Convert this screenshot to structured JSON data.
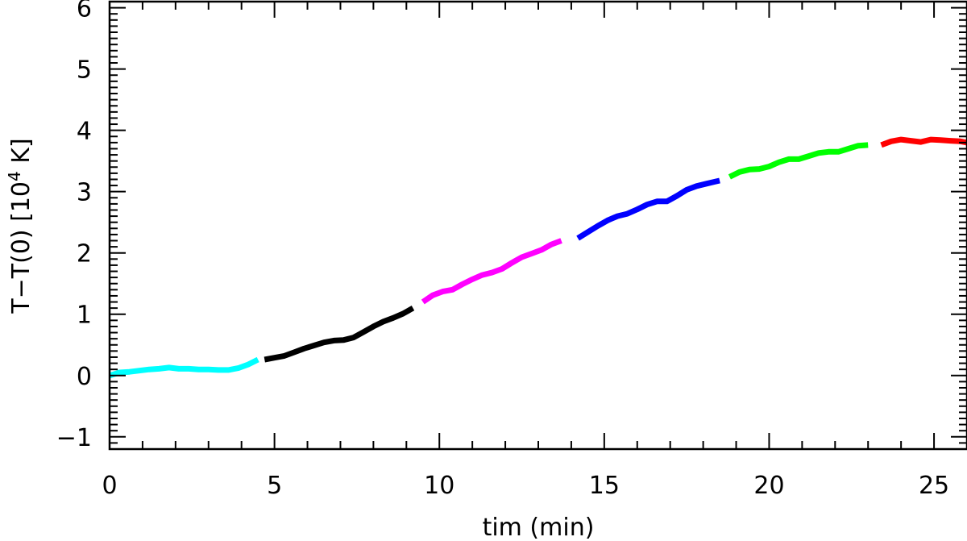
{
  "chart_data": {
    "type": "line",
    "xlabel": "tim (min)",
    "ylabel_main": "T−T(0) [10",
    "ylabel_sup": "4",
    "ylabel_tail": " K]",
    "xlim": [
      0,
      26
    ],
    "ylim": [
      -1.2,
      6.1
    ],
    "x_ticks": [
      0,
      5,
      10,
      15,
      20,
      25
    ],
    "x_tick_labels": [
      "0",
      "5",
      "10",
      "15",
      "20",
      "25"
    ],
    "y_ticks": [
      -1,
      0,
      1,
      2,
      3,
      4,
      5,
      6
    ],
    "y_tick_labels": [
      "−1",
      "0",
      "1",
      "2",
      "3",
      "4",
      "5",
      "6"
    ],
    "grid": false,
    "series": [
      {
        "color": "#00ffff",
        "x": [
          0.0,
          0.3,
          0.6,
          0.9,
          1.2,
          1.5,
          1.8,
          2.1,
          2.4,
          2.7,
          3.0,
          3.3,
          3.6,
          3.9,
          4.2,
          4.5
        ],
        "y": [
          0.0,
          0.05,
          0.06,
          0.08,
          0.1,
          0.11,
          0.13,
          0.11,
          0.11,
          0.1,
          0.1,
          0.09,
          0.09,
          0.12,
          0.18,
          0.26
        ]
      },
      {
        "color": "#000000",
        "x": [
          4.7,
          5.0,
          5.3,
          5.6,
          5.9,
          6.2,
          6.5,
          6.8,
          7.1,
          7.4,
          7.7,
          8.0,
          8.3,
          8.6,
          8.9,
          9.2
        ],
        "y": [
          0.26,
          0.29,
          0.32,
          0.38,
          0.44,
          0.49,
          0.54,
          0.57,
          0.58,
          0.62,
          0.71,
          0.8,
          0.88,
          0.94,
          1.01,
          1.1
        ]
      },
      {
        "color": "#ff00ff",
        "x": [
          9.5,
          9.8,
          10.1,
          10.4,
          10.7,
          11.0,
          11.3,
          11.6,
          11.9,
          12.2,
          12.5,
          12.8,
          13.1,
          13.4,
          13.7
        ],
        "y": [
          1.2,
          1.31,
          1.37,
          1.4,
          1.49,
          1.57,
          1.64,
          1.68,
          1.74,
          1.84,
          1.93,
          1.99,
          2.05,
          2.14,
          2.2
        ]
      },
      {
        "color": "#0000ff",
        "x": [
          14.2,
          14.5,
          14.8,
          15.1,
          15.4,
          15.7,
          16.0,
          16.3,
          16.6,
          16.9,
          17.2,
          17.5,
          17.8,
          18.1,
          18.5
        ],
        "y": [
          2.24,
          2.34,
          2.44,
          2.53,
          2.6,
          2.64,
          2.71,
          2.79,
          2.84,
          2.84,
          2.93,
          3.03,
          3.09,
          3.13,
          3.18
        ]
      },
      {
        "color": "#00ff00",
        "x": [
          18.8,
          19.1,
          19.4,
          19.7,
          20.0,
          20.3,
          20.6,
          20.9,
          21.2,
          21.5,
          21.8,
          22.1,
          22.4,
          22.7,
          23.0
        ],
        "y": [
          3.24,
          3.32,
          3.36,
          3.37,
          3.41,
          3.48,
          3.53,
          3.53,
          3.58,
          3.63,
          3.65,
          3.65,
          3.7,
          3.75,
          3.76
        ]
      },
      {
        "color": "#ff0000",
        "x": [
          23.4,
          23.7,
          24.0,
          24.3,
          24.6,
          24.9,
          25.2,
          25.5,
          25.8,
          26.0
        ],
        "y": [
          3.76,
          3.82,
          3.85,
          3.83,
          3.81,
          3.85,
          3.84,
          3.83,
          3.82,
          3.8
        ]
      }
    ]
  }
}
